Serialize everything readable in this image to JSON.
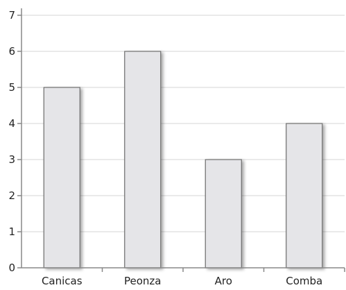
{
  "chart_data": {
    "type": "bar",
    "categories": [
      "Canicas",
      "Peonza",
      "Aro",
      "Comba"
    ],
    "values": [
      5,
      6,
      3,
      4
    ],
    "title": "",
    "xlabel": "",
    "ylabel": "",
    "ylim": [
      0,
      7
    ],
    "yticks": [
      "0",
      "1",
      "2",
      "3",
      "4",
      "5",
      "6",
      "7"
    ],
    "grid": true,
    "legend": "none",
    "colors": {
      "bar_fill": "#e5e5e8",
      "bar_stroke": "#6e6e6e",
      "grid": "#d6d6d6",
      "axis": "#888888"
    }
  }
}
